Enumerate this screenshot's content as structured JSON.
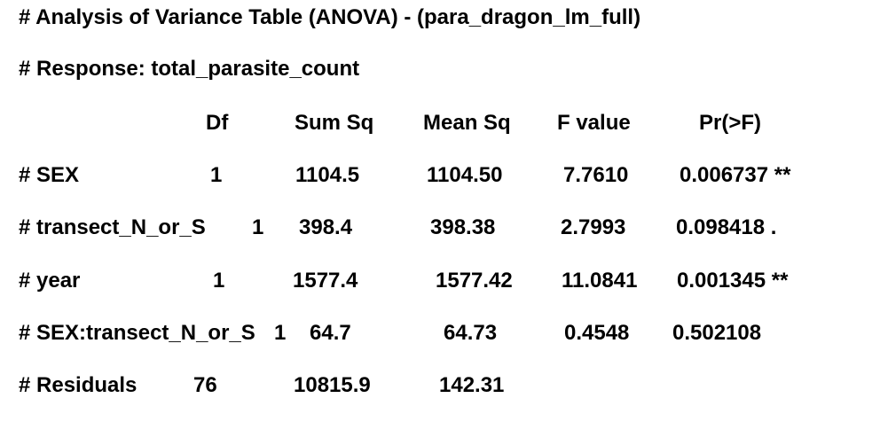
{
  "title": "# Analysis of Variance Table (ANOVA) - (para_dragon_lm_full)",
  "response": "# Response: total_parasite_count",
  "columns": {
    "df": "Df",
    "sum_sq": "Sum Sq",
    "mean_sq": "Mean Sq",
    "f_value": "F value",
    "p_value": "Pr(>F)"
  },
  "rows": [
    {
      "term": "# SEX",
      "df": "1",
      "sum_sq": "1104.5",
      "mean_sq": "1104.50",
      "f_value": "7.7610",
      "p_value": "0.006737 **"
    },
    {
      "term": "# transect_N_or_S",
      "df": "1",
      "sum_sq": "398.4",
      "mean_sq": "398.38",
      "f_value": "2.7993",
      "p_value": "0.098418 ."
    },
    {
      "term": "# year",
      "df": "1",
      "sum_sq": "1577.4",
      "mean_sq": "1577.42",
      "f_value": "11.0841",
      "p_value": "0.001345 **"
    },
    {
      "term": "# SEX:transect_N_or_S",
      "df": "1",
      "sum_sq": "64.7",
      "mean_sq": "64.73",
      "f_value": "0.4548",
      "p_value": "0.502108"
    },
    {
      "term": "# Residuals",
      "df": "76",
      "sum_sq": "10815.9",
      "mean_sq": "142.31",
      "f_value": "",
      "p_value": ""
    }
  ]
}
